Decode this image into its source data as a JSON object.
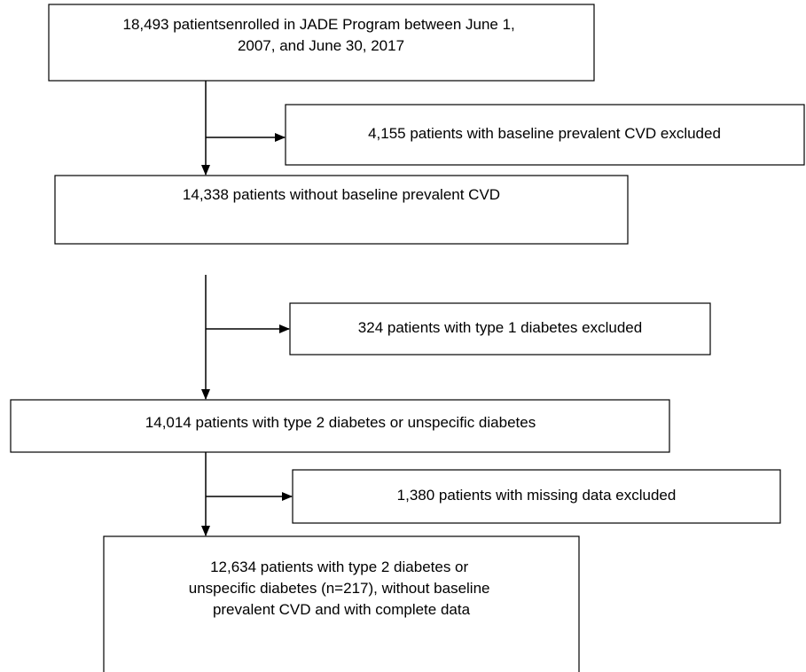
{
  "nodes": [
    {
      "lines": [
        "18,493 patientsenrolled in JADE Program between June 1,",
        "2007, and June 30, 2017"
      ]
    },
    {
      "lines": [
        "4,155 patients with baseline prevalent CVD excluded"
      ]
    },
    {
      "lines": [
        "14,338 patients without baseline prevalent CVD"
      ]
    },
    {
      "lines": [
        "324 patients with type 1 diabetes excluded"
      ]
    },
    {
      "lines": [
        "14,014 patients with type 2 diabetes or unspecific diabetes"
      ]
    },
    {
      "lines": [
        "1,380 patients with missing data excluded"
      ]
    },
    {
      "lines": [
        "12,634 patients with type 2 diabetes or",
        "unspecific diabetes (n=217), without baseline",
        "prevalent CVD and with complete data"
      ]
    }
  ]
}
